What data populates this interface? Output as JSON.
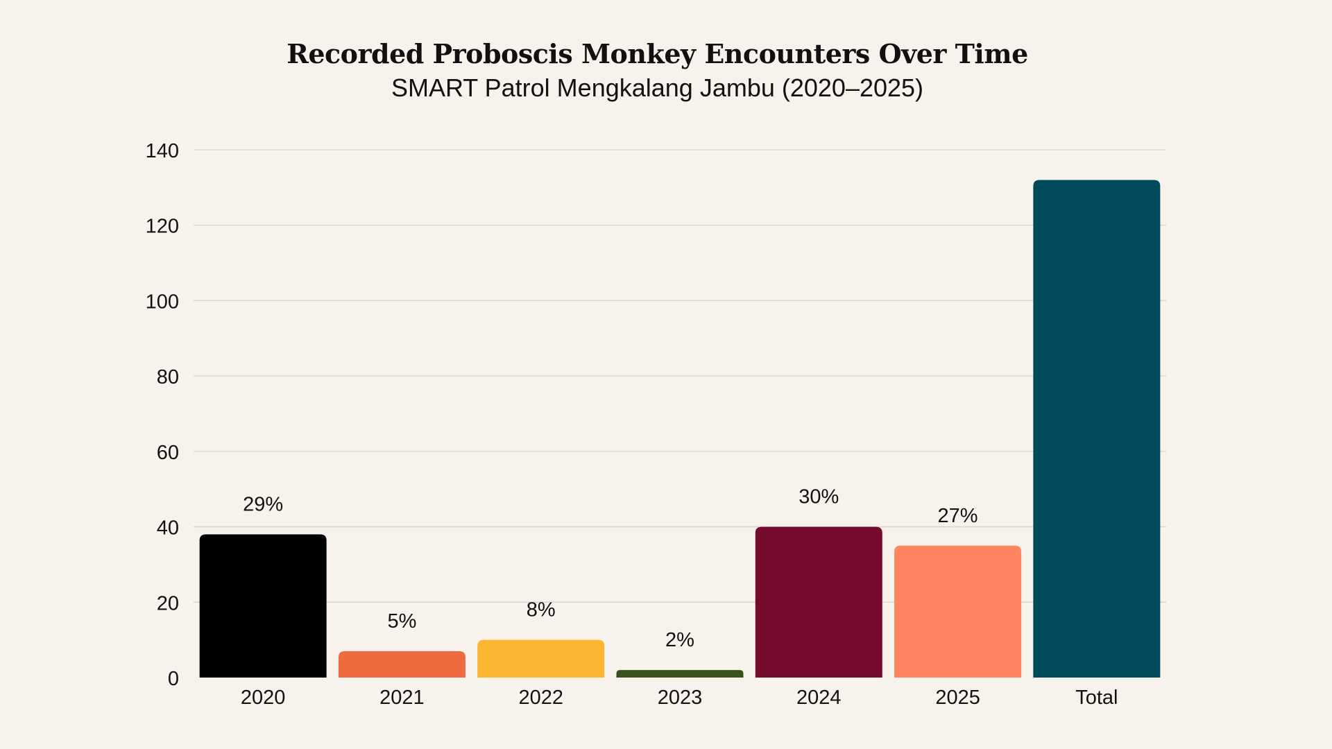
{
  "chart_data": {
    "type": "bar",
    "title": "Recorded Proboscis Monkey Encounters Over Time",
    "subtitle": "SMART Patrol Mengkalang Jambu (2020–2025)",
    "categories": [
      "2020",
      "2021",
      "2022",
      "2023",
      "2024",
      "2025",
      "Total"
    ],
    "values": [
      38,
      7,
      10,
      2,
      40,
      35,
      132
    ],
    "data_labels": [
      "29%",
      "5%",
      "8%",
      "2%",
      "30%",
      "27%",
      ""
    ],
    "colors": [
      "#000000",
      "#ef6a3f",
      "#fbb634",
      "#37521a",
      "#740b2c",
      "#ff8560",
      "#004b5a"
    ],
    "y_ticks": [
      0,
      20,
      40,
      60,
      80,
      100,
      120,
      140
    ],
    "ylim": [
      0,
      140
    ],
    "xlabel": "",
    "ylabel": "",
    "grid": true,
    "legend": "none"
  }
}
